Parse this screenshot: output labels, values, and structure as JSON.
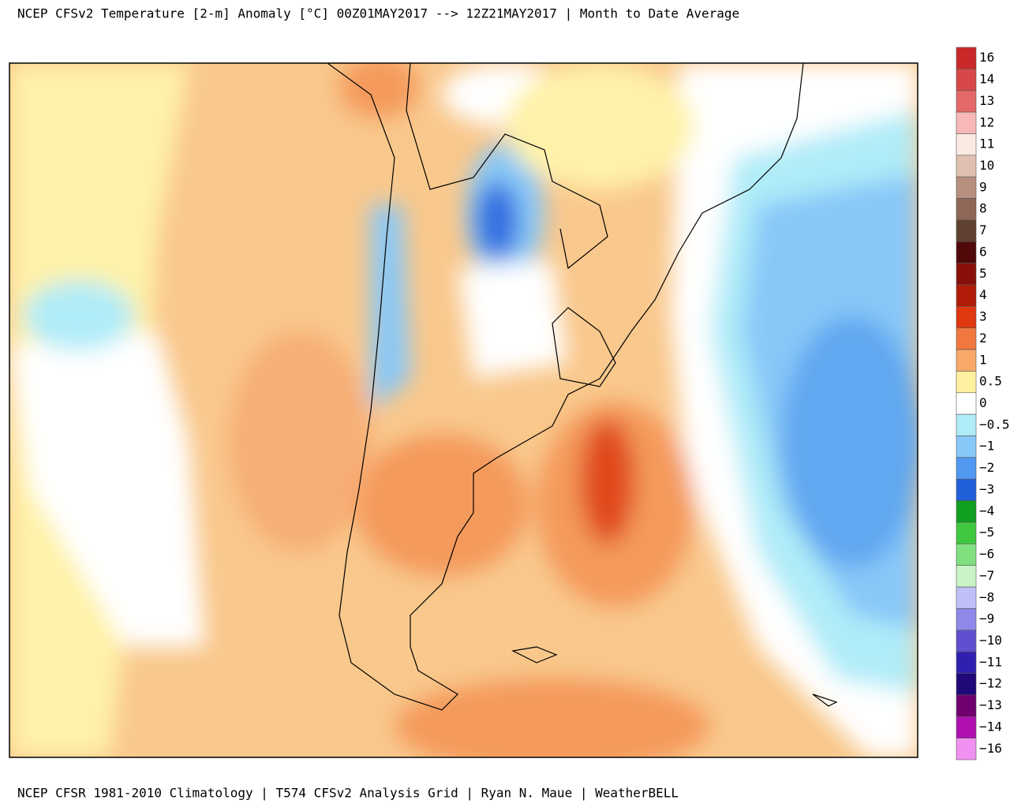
{
  "header": {
    "title": "NCEP CFSv2 Temperature [2-m] Anomaly  [°C] 00Z01MAY2017 --> 12Z21MAY2017 | Month to Date Average"
  },
  "footer": {
    "text": "NCEP CFSR 1981-2010 Climatology | T574 CFSv2 Analysis Grid | Ryan N. Maue | WeatherBELL"
  },
  "colorbar": {
    "entries": [
      {
        "label": "16",
        "color": "#c82828"
      },
      {
        "label": "14",
        "color": "#d84848"
      },
      {
        "label": "13",
        "color": "#e46868"
      },
      {
        "label": "12",
        "color": "#f8b8b8"
      },
      {
        "label": "11",
        "color": "#faeae4"
      },
      {
        "label": "10",
        "color": "#e0c0b0"
      },
      {
        "label": "9",
        "color": "#b89080"
      },
      {
        "label": "8",
        "color": "#906858"
      },
      {
        "label": "7",
        "color": "#604030"
      },
      {
        "label": "6",
        "color": "#500808"
      },
      {
        "label": "5",
        "color": "#881008"
      },
      {
        "label": "4",
        "color": "#b01c08"
      },
      {
        "label": "3",
        "color": "#e03810"
      },
      {
        "label": "2",
        "color": "#f07840"
      },
      {
        "label": "1",
        "color": "#f8a868"
      },
      {
        "label": "0.5",
        "color": "#fff0a0"
      },
      {
        "label": "0",
        "color": "#ffffff"
      },
      {
        "label": "−0.5",
        "color": "#b0ecf8"
      },
      {
        "label": "−1",
        "color": "#88c8f8"
      },
      {
        "label": "−2",
        "color": "#5098f0"
      },
      {
        "label": "−3",
        "color": "#2060d8"
      },
      {
        "label": "−4",
        "color": "#10a020"
      },
      {
        "label": "−5",
        "color": "#40c840"
      },
      {
        "label": "−6",
        "color": "#80e080"
      },
      {
        "label": "−7",
        "color": "#c8f4c8"
      },
      {
        "label": "−8",
        "color": "#c0c0f8"
      },
      {
        "label": "−9",
        "color": "#9088e8"
      },
      {
        "label": "−10",
        "color": "#6050d0"
      },
      {
        "label": "−11",
        "color": "#3020b0"
      },
      {
        "label": "−12",
        "color": "#200878"
      },
      {
        "label": "−13",
        "color": "#700070"
      },
      {
        "label": "−14",
        "color": "#b010b0"
      },
      {
        "label": "−16",
        "color": "#f090f0"
      }
    ]
  }
}
